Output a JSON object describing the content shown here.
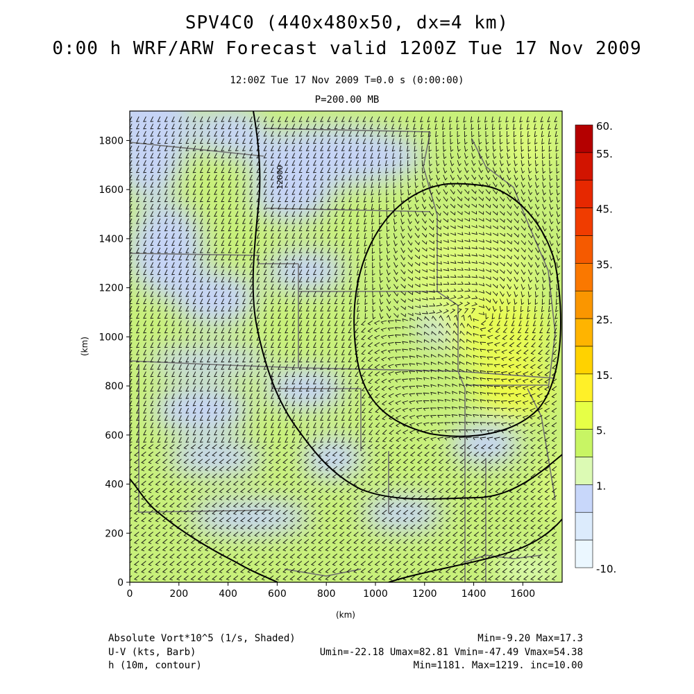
{
  "header": {
    "title_line1": "SPV4C0 (440x480x50, dx=4 km)",
    "title_line2": "0:00 h WRF/ARW Forecast valid 1200Z Tue 17 Nov 2009",
    "time_info": "12:00Z Tue 17 Nov 2009     T=0.0 s (0:00:00)",
    "level": "P=200.00 MB"
  },
  "map": {
    "x_axis_label": "(km)",
    "y_axis_label": "(km)",
    "x_ticks": [
      0,
      200,
      400,
      600,
      800,
      1000,
      1200,
      1400,
      1600
    ],
    "y_ticks": [
      0,
      200,
      400,
      600,
      800,
      1000,
      1200,
      1400,
      1600,
      1800
    ],
    "x_range": [
      0,
      1760
    ],
    "y_range": [
      0,
      1920
    ],
    "contour_label": "12000"
  },
  "colorbar": {
    "tick_labels": [
      "60.",
      "55.",
      "45.",
      "35.",
      "25.",
      "15.",
      "5.",
      "1.",
      "-10."
    ],
    "colors": [
      "#b40000",
      "#d21400",
      "#e62800",
      "#f03c00",
      "#f55a00",
      "#fa7800",
      "#fa9600",
      "#ffb400",
      "#ffd200",
      "#fff028",
      "#e6ff46",
      "#c8f564",
      "#dcfab4",
      "#c8d7fa",
      "#dcebfc",
      "#ebf7ff"
    ]
  },
  "footer": {
    "field1": "Absolute Vort*10^5 (1/s, Shaded)",
    "field1_stats": "Min=-9.20 Max=17.3",
    "field2": "U-V (kts, Barb)",
    "field2_stats": "Umin=-22.18 Umax=82.81 Vmin=-47.49 Vmax=54.38",
    "field3": "h (10m, contour)",
    "field3_stats": "Min=1181. Max=1219. inc=10.00"
  }
}
